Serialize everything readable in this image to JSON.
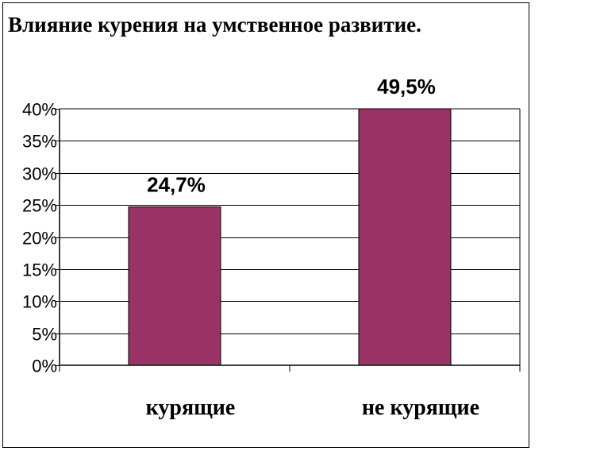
{
  "chart_data": {
    "type": "bar",
    "title": "Влияние курения на умственное развитие.",
    "categories": [
      "курящие",
      "не курящие"
    ],
    "values": [
      24.7,
      49.5
    ],
    "value_labels": [
      "24,7%",
      "49,5%"
    ],
    "ylim": [
      0,
      40
    ],
    "ytick_values": [
      0,
      5,
      10,
      15,
      20,
      25,
      30,
      35,
      40
    ],
    "ytick_labels": [
      "0%",
      "5%",
      "10%",
      "15%",
      "20%",
      "25%",
      "30%",
      "35%",
      "40%"
    ],
    "xlabel": "",
    "ylabel": "",
    "grid": true,
    "legend": false,
    "bar_color": "#993366"
  }
}
